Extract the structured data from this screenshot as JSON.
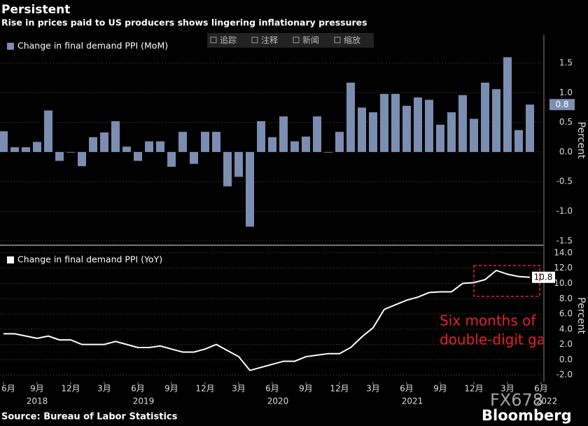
{
  "header": {
    "title": "Persistent",
    "subtitle": "Rise in prices paid to US producers shows lingering inflationary pressures"
  },
  "toolbar": [
    "追踪",
    "注释",
    "新闻",
    "缩放"
  ],
  "chart_data": [
    {
      "type": "bar",
      "series": [
        {
          "name": "Change in final demand PPI (MoM)",
          "color": "#7b8db0",
          "values": [
            0.35,
            0.08,
            0.08,
            0.17,
            0.7,
            -0.15,
            0.0,
            -0.24,
            0.25,
            0.33,
            0.52,
            0.09,
            -0.15,
            0.18,
            0.18,
            -0.25,
            0.34,
            -0.2,
            0.34,
            0.34,
            -0.58,
            -0.42,
            -1.26,
            0.52,
            0.25,
            0.6,
            0.18,
            0.26,
            0.6,
            0.0,
            0.34,
            1.17,
            0.75,
            0.67,
            0.98,
            0.98,
            0.78,
            0.92,
            0.88,
            0.46,
            0.67,
            0.96,
            0.56,
            1.17,
            1.06,
            1.6,
            0.37,
            0.8
          ]
        }
      ],
      "ylim": [
        -1.55,
        1.95
      ],
      "yticks": [
        1.5,
        {
          "value": 1.0,
          "label": "1.0"
        },
        0.5,
        {
          "value": 0,
          "label": "0.0"
        },
        -0.5,
        {
          "value": -1.0,
          "label": "-1.0"
        },
        -1.5
      ],
      "y_axis_label": "Percent",
      "grid": true
    },
    {
      "type": "line",
      "series": [
        {
          "name": "Change in final demand PPI (YoY)",
          "color": "#ffffff",
          "values": [
            3.4,
            3.4,
            3.1,
            2.8,
            3.1,
            2.6,
            2.6,
            2.0,
            2.0,
            2.0,
            2.4,
            2.0,
            1.6,
            1.6,
            1.8,
            1.4,
            1.0,
            1.0,
            1.4,
            2.0,
            1.2,
            0.4,
            -1.4,
            -1.0,
            -0.6,
            -0.2,
            -0.2,
            0.4,
            0.6,
            0.8,
            0.8,
            1.6,
            3.0,
            4.2,
            6.6,
            7.2,
            7.8,
            8.2,
            8.8,
            8.9,
            8.9,
            10.0,
            10.1,
            10.5,
            11.7,
            11.2,
            10.9,
            10.8
          ]
        }
      ],
      "ylim": [
        -2.9,
        14.45
      ],
      "yticks": [
        {
          "value": 14,
          "label": "14.0"
        },
        {
          "value": 12,
          "label": "12.0"
        },
        {
          "value": 10,
          "label": "10.0"
        },
        {
          "value": 8,
          "label": "8.0"
        },
        {
          "value": 6,
          "label": "6.0"
        },
        {
          "value": 4,
          "label": "4.0"
        },
        {
          "value": 2,
          "label": "2.0"
        },
        {
          "value": 0,
          "label": "0.0"
        },
        {
          "value": -2,
          "label": "-2.0"
        }
      ],
      "y_axis_label": "Percent",
      "grid": true,
      "x_tick_labels": [
        "6月",
        "9月",
        "12月",
        "3月",
        "6月",
        "9月",
        "12月",
        "3月",
        "6月",
        "9月",
        "12月",
        "3月",
        "6月",
        "9月",
        "12月",
        "3月",
        "6月"
      ],
      "x_year_labels": [
        "2018",
        "2019",
        "2020",
        "2021",
        "2022"
      ],
      "annotation": [
        "Six months of",
        "double-digit ga"
      ]
    }
  ],
  "source": "Source: Bureau of Labor Statistics",
  "watermark": [
    "FX678",
    "Bloomberg"
  ]
}
